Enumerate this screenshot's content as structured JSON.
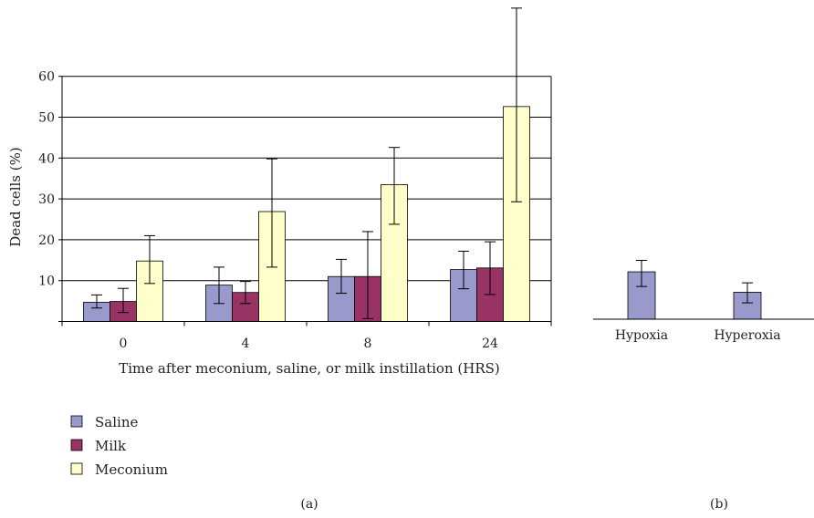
{
  "colors": {
    "saline": "#9999cc",
    "milk": "#993366",
    "meconium": "#ffffcc",
    "axis": "#000000",
    "grid": "#000000"
  },
  "chart_data": [
    {
      "panel": "(a)",
      "type": "bar",
      "xlabel": "Time after meconium, saline, or milk instillation (HRS)",
      "ylabel": "Dead cells (%)",
      "ylim": [
        0,
        60
      ],
      "yticks": [
        10,
        20,
        30,
        40,
        50,
        60
      ],
      "grid": true,
      "legend_position": "bottom-left",
      "categories": [
        "0",
        "4",
        "8",
        "24"
      ],
      "series": [
        {
          "name": "Saline",
          "values": [
            4.7,
            8.9,
            11.0,
            12.7
          ],
          "err_low": [
            3.3,
            4.4,
            6.9,
            8.0
          ],
          "err_high": [
            6.5,
            13.3,
            15.2,
            17.2
          ]
        },
        {
          "name": "Milk",
          "values": [
            4.9,
            7.1,
            11.0,
            13.1
          ],
          "err_low": [
            2.2,
            4.4,
            0.7,
            6.6
          ],
          "err_high": [
            8.1,
            9.8,
            22.0,
            19.5
          ]
        },
        {
          "name": "Meconium",
          "values": [
            14.8,
            26.9,
            33.5,
            52.6
          ],
          "err_low": [
            9.3,
            13.3,
            23.8,
            29.3
          ],
          "err_high": [
            21.0,
            39.8,
            42.6,
            76.7
          ]
        }
      ]
    },
    {
      "panel": "(b)",
      "type": "bar",
      "ylim": [
        0,
        60
      ],
      "grid": false,
      "categories": [
        "Hypoxia",
        "Hyperoxia"
      ],
      "series": [
        {
          "values": [
            11.6,
            6.6
          ],
          "err_low": [
            8.0,
            4.0
          ],
          "err_high": [
            14.4,
            8.9
          ]
        }
      ]
    }
  ]
}
